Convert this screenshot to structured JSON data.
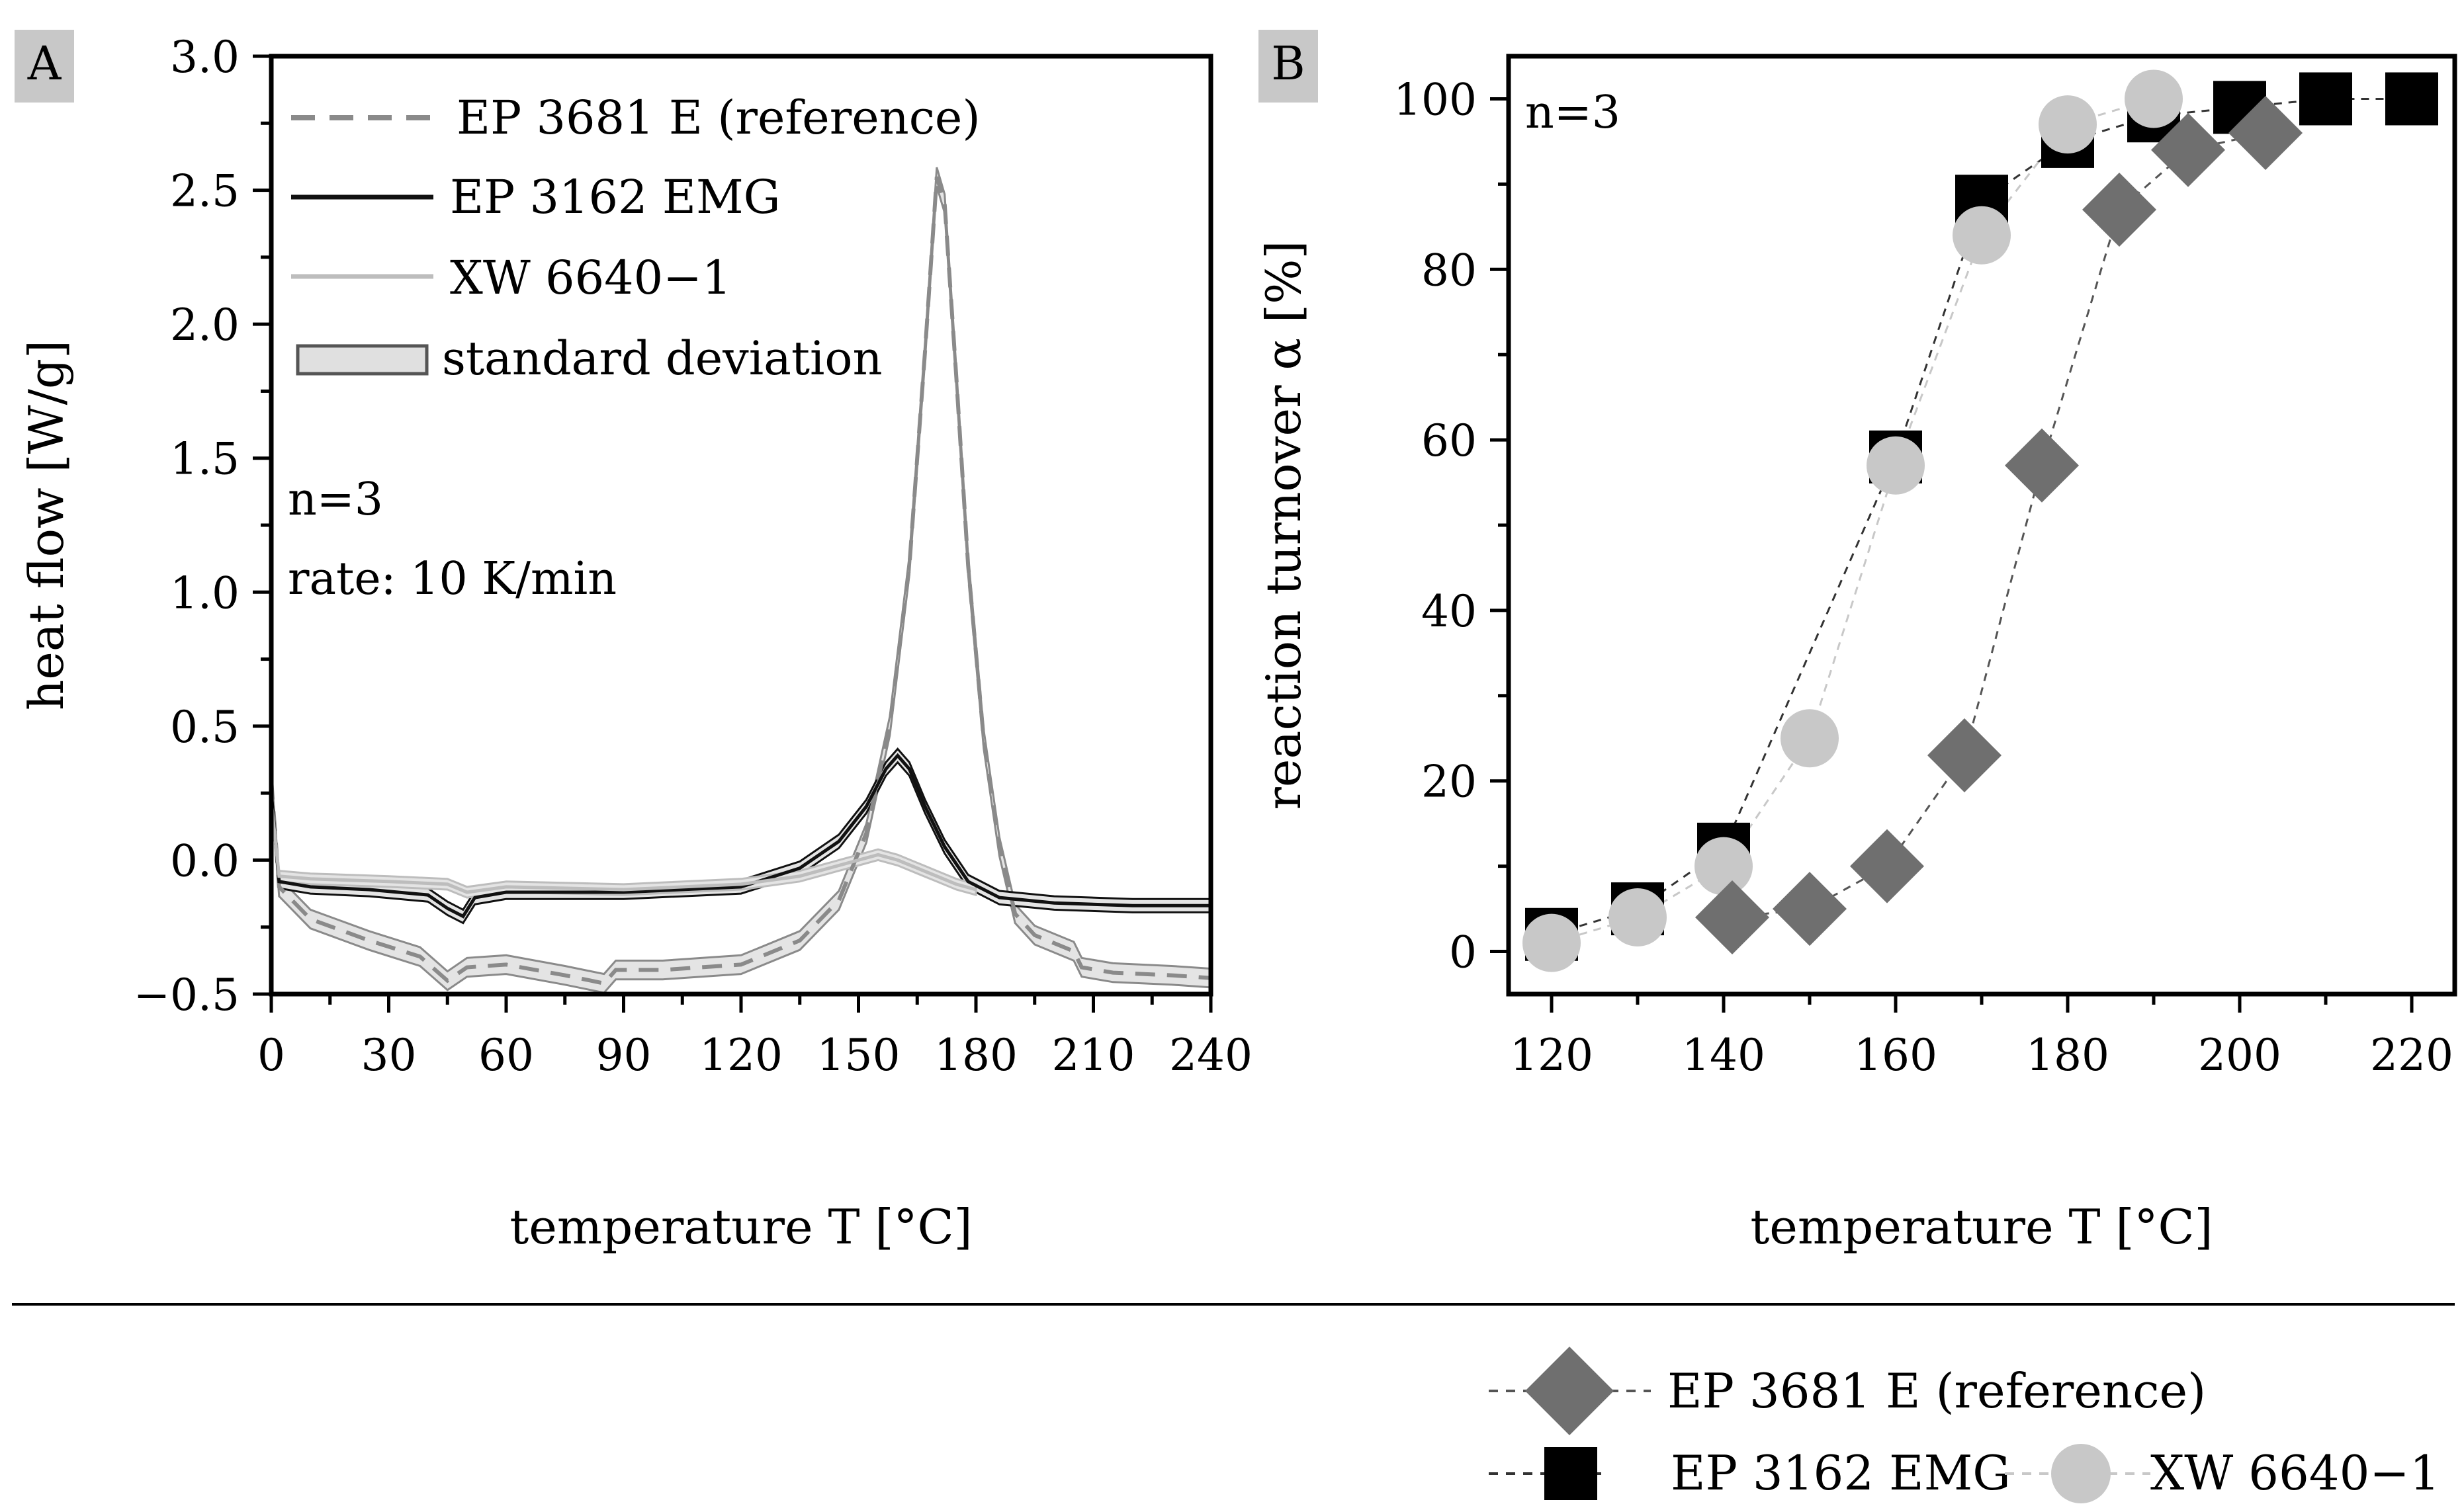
{
  "charts": {
    "A": {
      "panel_label": "A",
      "ylabel": "heat flow [W/g]",
      "xlabel": "temperature T [°C]",
      "annotations": [
        "n=3",
        "rate: 10 K/min"
      ],
      "legend": [
        {
          "label": "EP 3681 E (reference)",
          "style": "dashed",
          "color": "#8a8a8a"
        },
        {
          "label": "EP 3162 EMG",
          "style": "solid",
          "color": "#111111"
        },
        {
          "label": "XW 6640−1",
          "style": "solid",
          "color": "#bdbdbd"
        },
        {
          "label": "standard deviation",
          "style": "band",
          "color": "#dcdcdc"
        }
      ]
    },
    "B": {
      "panel_label": "B",
      "ylabel": "reaction turnover α [%]",
      "xlabel": "temperature T [°C]",
      "annotations": [
        "n=3"
      ],
      "legend": [
        {
          "label": "EP 3681 E (reference)",
          "marker": "diamond",
          "color": "#6f6f6f"
        },
        {
          "label": "EP 3162 EMG",
          "marker": "square",
          "color": "#000000"
        },
        {
          "label": "XW 6640−1",
          "marker": "circle",
          "color": "#c8c8c8"
        }
      ]
    }
  },
  "chart_data": [
    {
      "type": "line",
      "panel": "A",
      "xlabel": "temperature T [°C]",
      "ylabel": "heat flow [W/g]",
      "xlim": [
        0,
        240
      ],
      "ylim": [
        -0.5,
        3.0
      ],
      "xticks": [
        0,
        30,
        60,
        90,
        120,
        150,
        180,
        210,
        240
      ],
      "yticks": [
        -0.5,
        0.0,
        0.5,
        1.0,
        1.5,
        2.0,
        2.5,
        3.0
      ],
      "ytick_labels": [
        "−0.5",
        "0.0",
        "0.5",
        "1.0",
        "1.5",
        "2.0",
        "2.5",
        "3.0"
      ],
      "grid": false,
      "legend_position": "top-left",
      "series": [
        {
          "name": "EP 3681 E (reference)",
          "style": "dashed",
          "color": "#8a8a8a",
          "band_halfwidth": 0.035,
          "points": [
            [
              0,
              0.3
            ],
            [
              2,
              -0.1
            ],
            [
              10,
              -0.22
            ],
            [
              25,
              -0.3
            ],
            [
              38,
              -0.36
            ],
            [
              45,
              -0.45
            ],
            [
              50,
              -0.4
            ],
            [
              60,
              -0.39
            ],
            [
              75,
              -0.43
            ],
            [
              85,
              -0.46
            ],
            [
              88,
              -0.41
            ],
            [
              100,
              -0.41
            ],
            [
              120,
              -0.39
            ],
            [
              135,
              -0.3
            ],
            [
              145,
              -0.15
            ],
            [
              152,
              0.1
            ],
            [
              158,
              0.5
            ],
            [
              163,
              1.1
            ],
            [
              167,
              1.9
            ],
            [
              170,
              2.55
            ],
            [
              172,
              2.45
            ],
            [
              175,
              1.8
            ],
            [
              178,
              1.1
            ],
            [
              182,
              0.45
            ],
            [
              186,
              0.05
            ],
            [
              190,
              -0.2
            ],
            [
              195,
              -0.28
            ],
            [
              205,
              -0.34
            ],
            [
              207,
              -0.4
            ],
            [
              215,
              -0.42
            ],
            [
              230,
              -0.43
            ],
            [
              240,
              -0.44
            ]
          ]
        },
        {
          "name": "EP 3162 EMG",
          "style": "solid",
          "color": "#111111",
          "band_halfwidth": 0.025,
          "points": [
            [
              0,
              0.25
            ],
            [
              2,
              -0.08
            ],
            [
              10,
              -0.1
            ],
            [
              25,
              -0.11
            ],
            [
              40,
              -0.13
            ],
            [
              45,
              -0.18
            ],
            [
              49,
              -0.21
            ],
            [
              52,
              -0.14
            ],
            [
              60,
              -0.12
            ],
            [
              90,
              -0.12
            ],
            [
              120,
              -0.1
            ],
            [
              135,
              -0.03
            ],
            [
              145,
              0.07
            ],
            [
              152,
              0.2
            ],
            [
              157,
              0.34
            ],
            [
              160,
              0.39
            ],
            [
              163,
              0.34
            ],
            [
              167,
              0.2
            ],
            [
              172,
              0.05
            ],
            [
              178,
              -0.08
            ],
            [
              186,
              -0.14
            ],
            [
              200,
              -0.16
            ],
            [
              220,
              -0.17
            ],
            [
              240,
              -0.17
            ]
          ]
        },
        {
          "name": "XW 6640−1",
          "style": "solid",
          "color": "#bdbdbd",
          "band_halfwidth": 0.02,
          "points": [
            [
              0,
              0.22
            ],
            [
              2,
              -0.06
            ],
            [
              10,
              -0.07
            ],
            [
              30,
              -0.08
            ],
            [
              45,
              -0.09
            ],
            [
              50,
              -0.12
            ],
            [
              55,
              -0.11
            ],
            [
              60,
              -0.1
            ],
            [
              90,
              -0.11
            ],
            [
              120,
              -0.09
            ],
            [
              135,
              -0.06
            ],
            [
              145,
              -0.02
            ],
            [
              150,
              0.0
            ],
            [
              155,
              0.02
            ],
            [
              160,
              0.0
            ],
            [
              165,
              -0.03
            ],
            [
              170,
              -0.06
            ],
            [
              175,
              -0.09
            ],
            [
              180,
              -0.11
            ]
          ]
        }
      ]
    },
    {
      "type": "scatter",
      "panel": "B",
      "xlabel": "temperature T [°C]",
      "ylabel": "reaction turnover α [%]",
      "xlim": [
        115,
        225
      ],
      "ylim": [
        -5,
        105
      ],
      "xticks": [
        120,
        140,
        160,
        180,
        200,
        220
      ],
      "yticks": [
        0,
        20,
        40,
        60,
        80,
        100
      ],
      "grid": false,
      "legend_position": "bottom",
      "series": [
        {
          "name": "EP 3681 E (reference)",
          "marker": "diamond",
          "color": "#6f6f6f",
          "x": [
            141,
            150,
            159,
            168,
            177,
            186,
            194,
            203
          ],
          "y": [
            4,
            5,
            10,
            23,
            57,
            87,
            94,
            96
          ]
        },
        {
          "name": "EP 3162 EMG",
          "marker": "square",
          "color": "#000000",
          "x": [
            120,
            130,
            140,
            160,
            170,
            180,
            190,
            200,
            210,
            220
          ],
          "y": [
            2,
            5,
            12,
            58,
            88,
            95,
            98,
            99,
            100,
            100
          ]
        },
        {
          "name": "XW 6640−1",
          "marker": "circle",
          "color": "#c8c8c8",
          "x": [
            120,
            130,
            140,
            150,
            160,
            170,
            180,
            190
          ],
          "y": [
            1,
            4,
            10,
            25,
            57,
            84,
            97,
            100
          ]
        }
      ]
    }
  ]
}
